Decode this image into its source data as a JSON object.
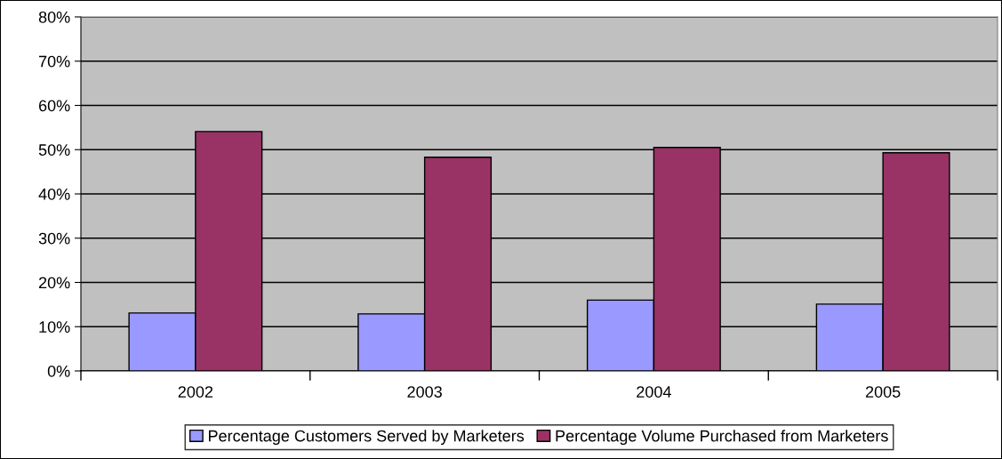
{
  "chart_data": {
    "type": "bar",
    "categories": [
      "2002",
      "2003",
      "2004",
      "2005"
    ],
    "series": [
      {
        "name": "Percentage Customers Served by Marketers",
        "color": "#9999ff",
        "values": [
          13.1,
          12.9,
          16.0,
          15.1
        ]
      },
      {
        "name": "Percentage Volume Purchased from Marketers",
        "color": "#993366",
        "values": [
          54.1,
          48.3,
          50.5,
          49.3
        ]
      }
    ],
    "ylim": [
      0,
      80
    ],
    "yticks": [
      {
        "value": 0,
        "label": "0%"
      },
      {
        "value": 10,
        "label": "10%"
      },
      {
        "value": 20,
        "label": "20%"
      },
      {
        "value": 30,
        "label": "30%"
      },
      {
        "value": 40,
        "label": "40%"
      },
      {
        "value": 50,
        "label": "50%"
      },
      {
        "value": 60,
        "label": "60%"
      },
      {
        "value": 70,
        "label": "70%"
      },
      {
        "value": 80,
        "label": "80%"
      }
    ],
    "grid": "y",
    "legend": "bottom"
  }
}
